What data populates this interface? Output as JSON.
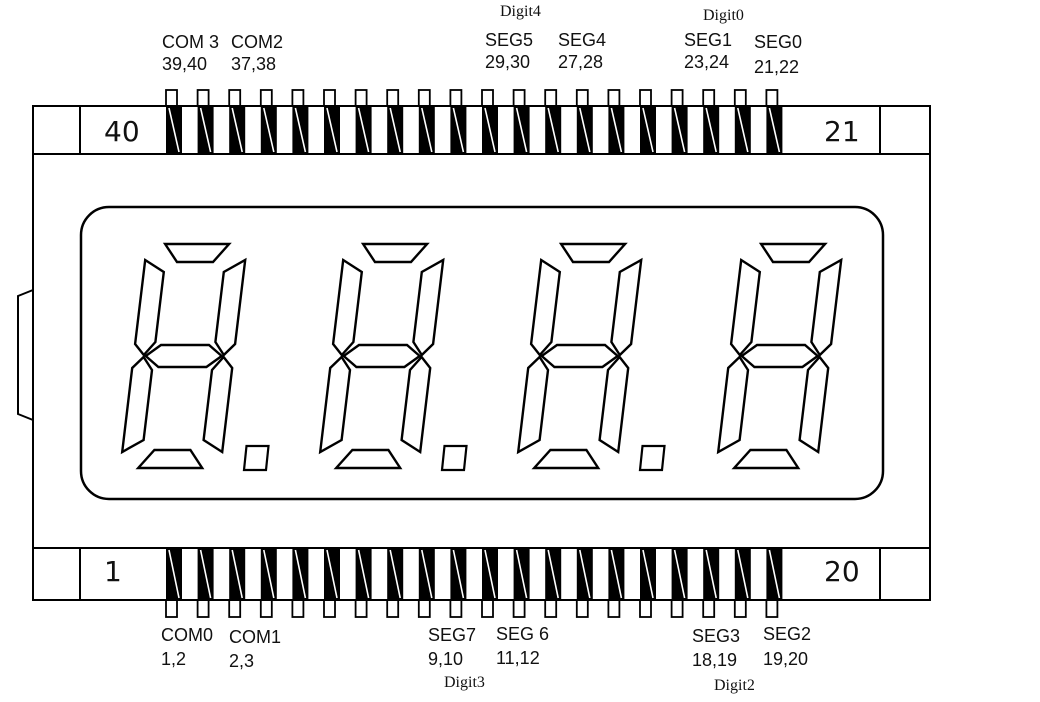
{
  "pin_numbers": {
    "top_left": "40",
    "top_right": "21",
    "bottom_left": "1",
    "bottom_right": "20"
  },
  "top_labels": [
    {
      "name": "COM 3",
      "pins": "39,40"
    },
    {
      "name": "COM2",
      "pins": "37,38"
    },
    {
      "name": "SEG5",
      "pins": "29,30"
    },
    {
      "name": "SEG4",
      "pins": "27,28"
    },
    {
      "name": "SEG1",
      "pins": "23,24"
    },
    {
      "name": "SEG0",
      "pins": "21,22"
    }
  ],
  "bottom_labels": [
    {
      "name": "COM0",
      "pins": "1,2"
    },
    {
      "name": "COM1",
      "pins": "2,3"
    },
    {
      "name": "SEG7",
      "pins": "9,10"
    },
    {
      "name": "SEG 6",
      "pins": "11,12"
    },
    {
      "name": "SEG3",
      "pins": "18,19"
    },
    {
      "name": "SEG2",
      "pins": "19,20"
    }
  ],
  "digit_labels": {
    "top_a": "Digit4",
    "top_b": "Digit0",
    "bottom_a": "Digit3",
    "bottom_b": "Digit2"
  },
  "colors": {
    "line": "#000000",
    "background": "#ffffff"
  }
}
